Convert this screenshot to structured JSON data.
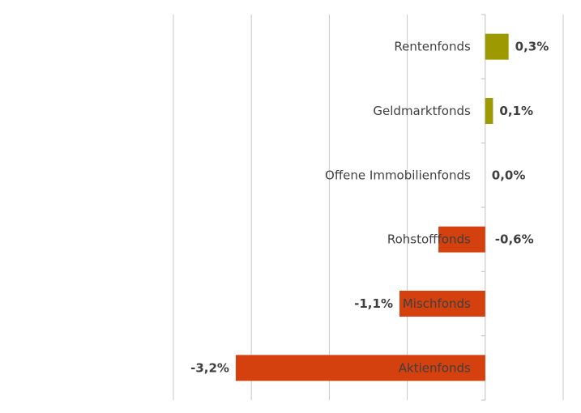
{
  "chart_data": {
    "type": "bar",
    "orientation": "horizontal",
    "categories": [
      "Rentenfonds",
      "Geldmarktfonds",
      "Offene Immobilienfonds",
      "Rohstofffonds",
      "Mischfonds",
      "Aktienfonds"
    ],
    "values": [
      0.3,
      0.1,
      0.0,
      -0.6,
      -1.1,
      -3.2
    ],
    "value_labels": [
      "0,3%",
      "0,1%",
      "0,0%",
      "-0,6%",
      "-1,1%",
      "-3,2%"
    ],
    "xlim": [
      -4.0,
      1.0
    ],
    "grid": true,
    "title": "",
    "xlabel": "",
    "ylabel": "",
    "colors": {
      "positive": "#9c9a00",
      "negative": "#d5400f"
    }
  }
}
